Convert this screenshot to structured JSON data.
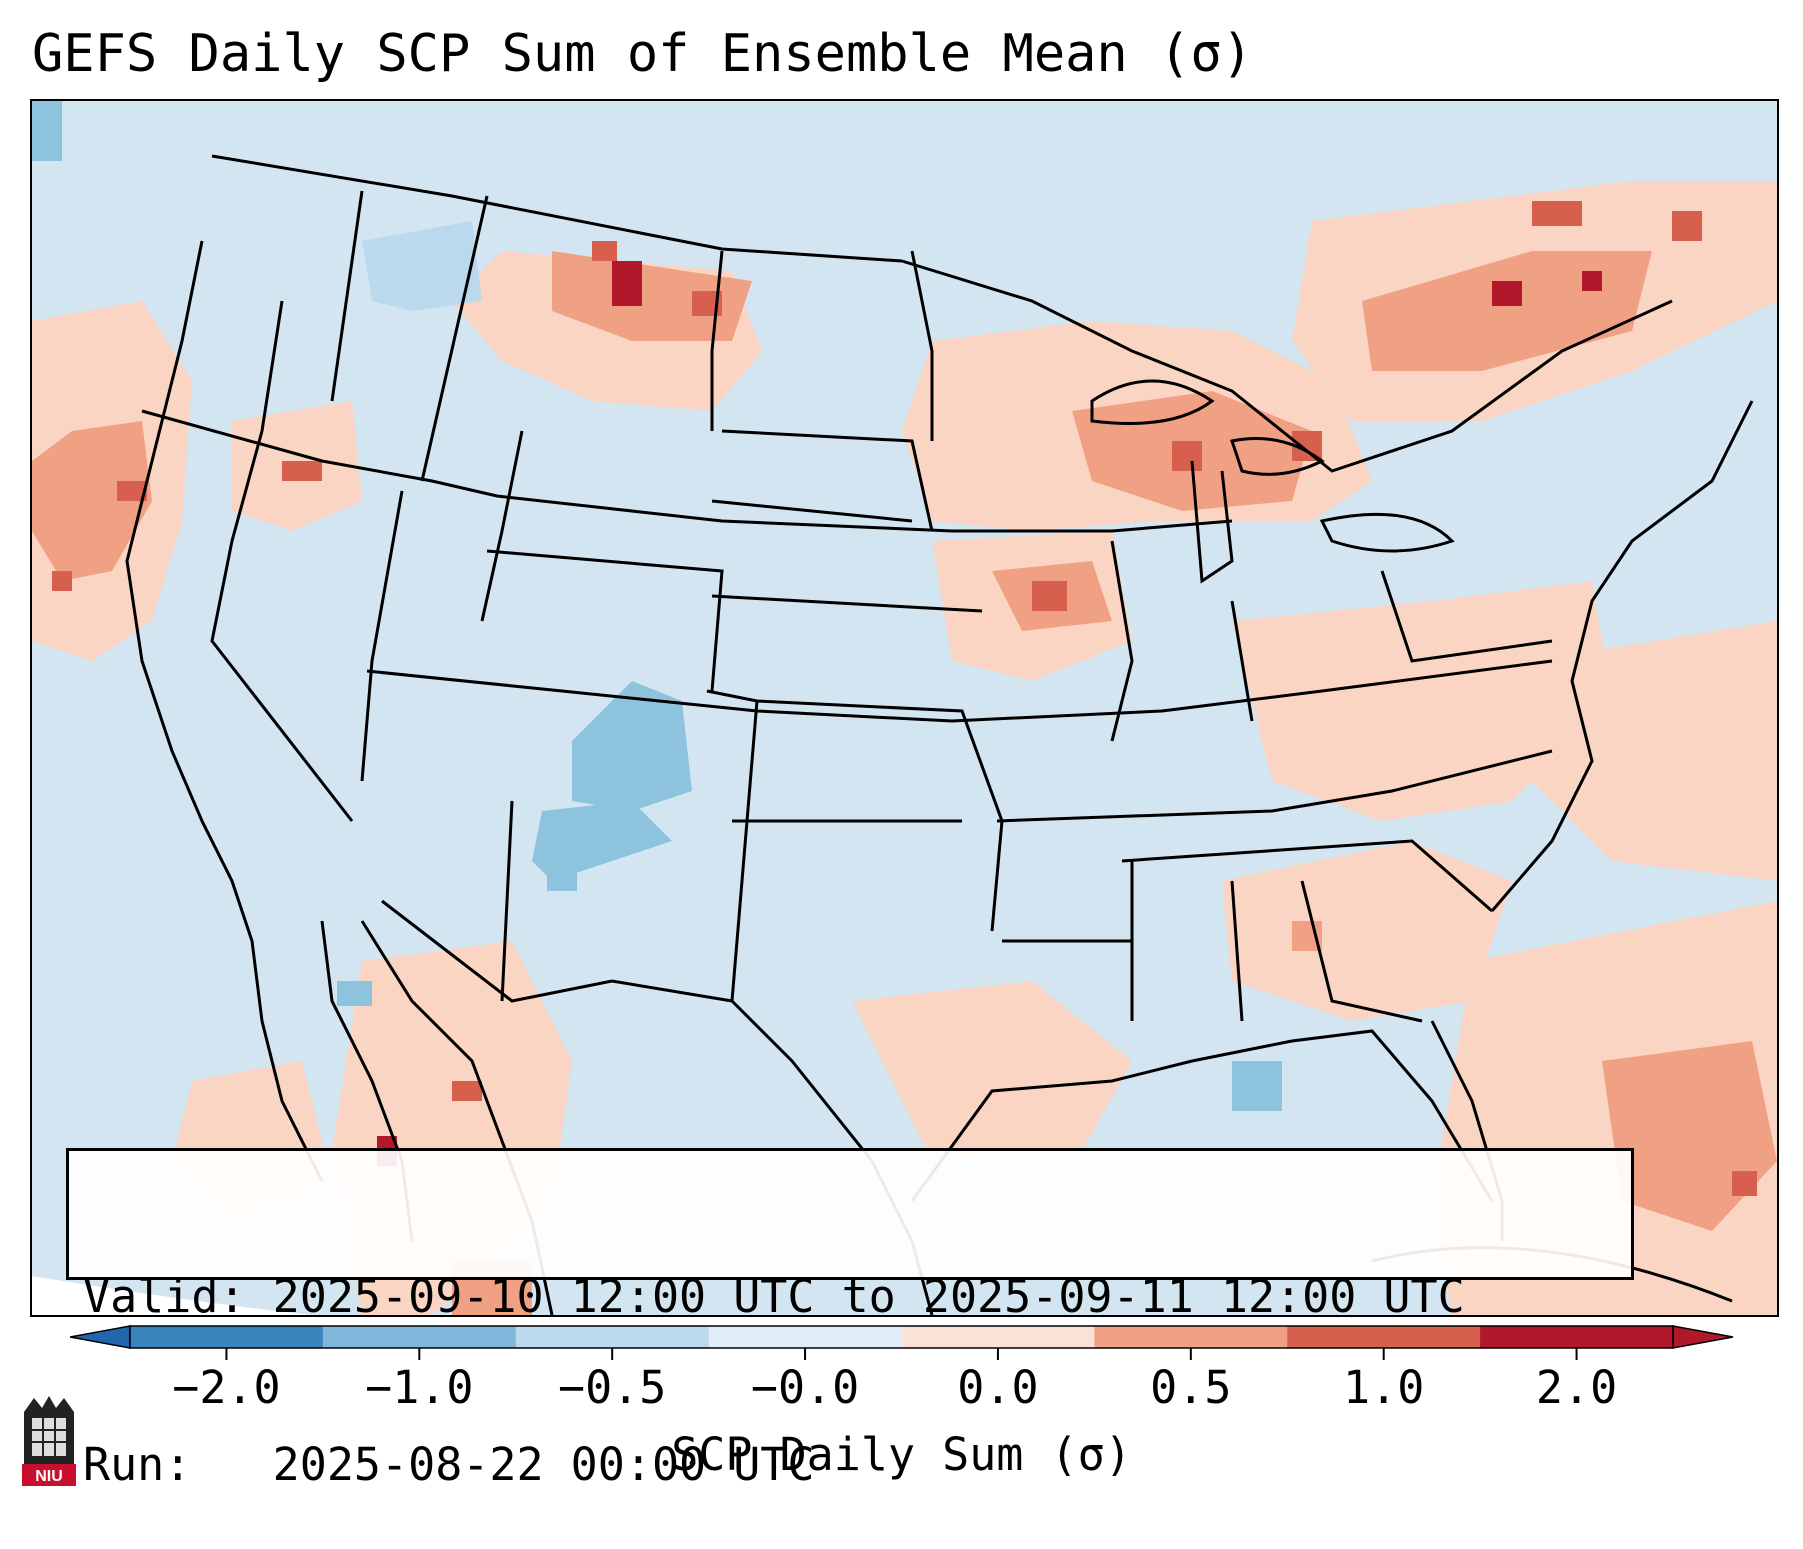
{
  "title": "GEFS Daily SCP Sum of Ensemble Mean (σ)",
  "info": {
    "valid_line": "Valid: 2025-09-10 12:00 UTC to 2025-09-11 12:00 UTC",
    "run_line": "Run:   2025-08-22 00:00 UTC"
  },
  "colorbar": {
    "label": "SCP Daily Sum (σ)",
    "ticks": [
      "−2.0",
      "−1.0",
      "−0.5",
      "−0.0",
      "0.0",
      "0.5",
      "1.0",
      "2.0"
    ],
    "bin_colors": [
      "#3a84be",
      "#7fb6da",
      "#bad9ec",
      "#e1edf6",
      "#fbe2d6",
      "#f0a183",
      "#d6604d",
      "#b2182b"
    ],
    "extend_low_color": "#2166ac",
    "extend_high_color": "#b2182b"
  },
  "map": {
    "background_color": "#d2e5f1",
    "anomaly_colors": {
      "light_blue": "#bad9ec",
      "mid_blue": "#8ec3de",
      "light_red": "#fbd5c3",
      "mid_red": "#f0a183",
      "strong_red": "#d6604d",
      "dark_red": "#b2182b"
    }
  },
  "logo": {
    "text": "NIU"
  }
}
